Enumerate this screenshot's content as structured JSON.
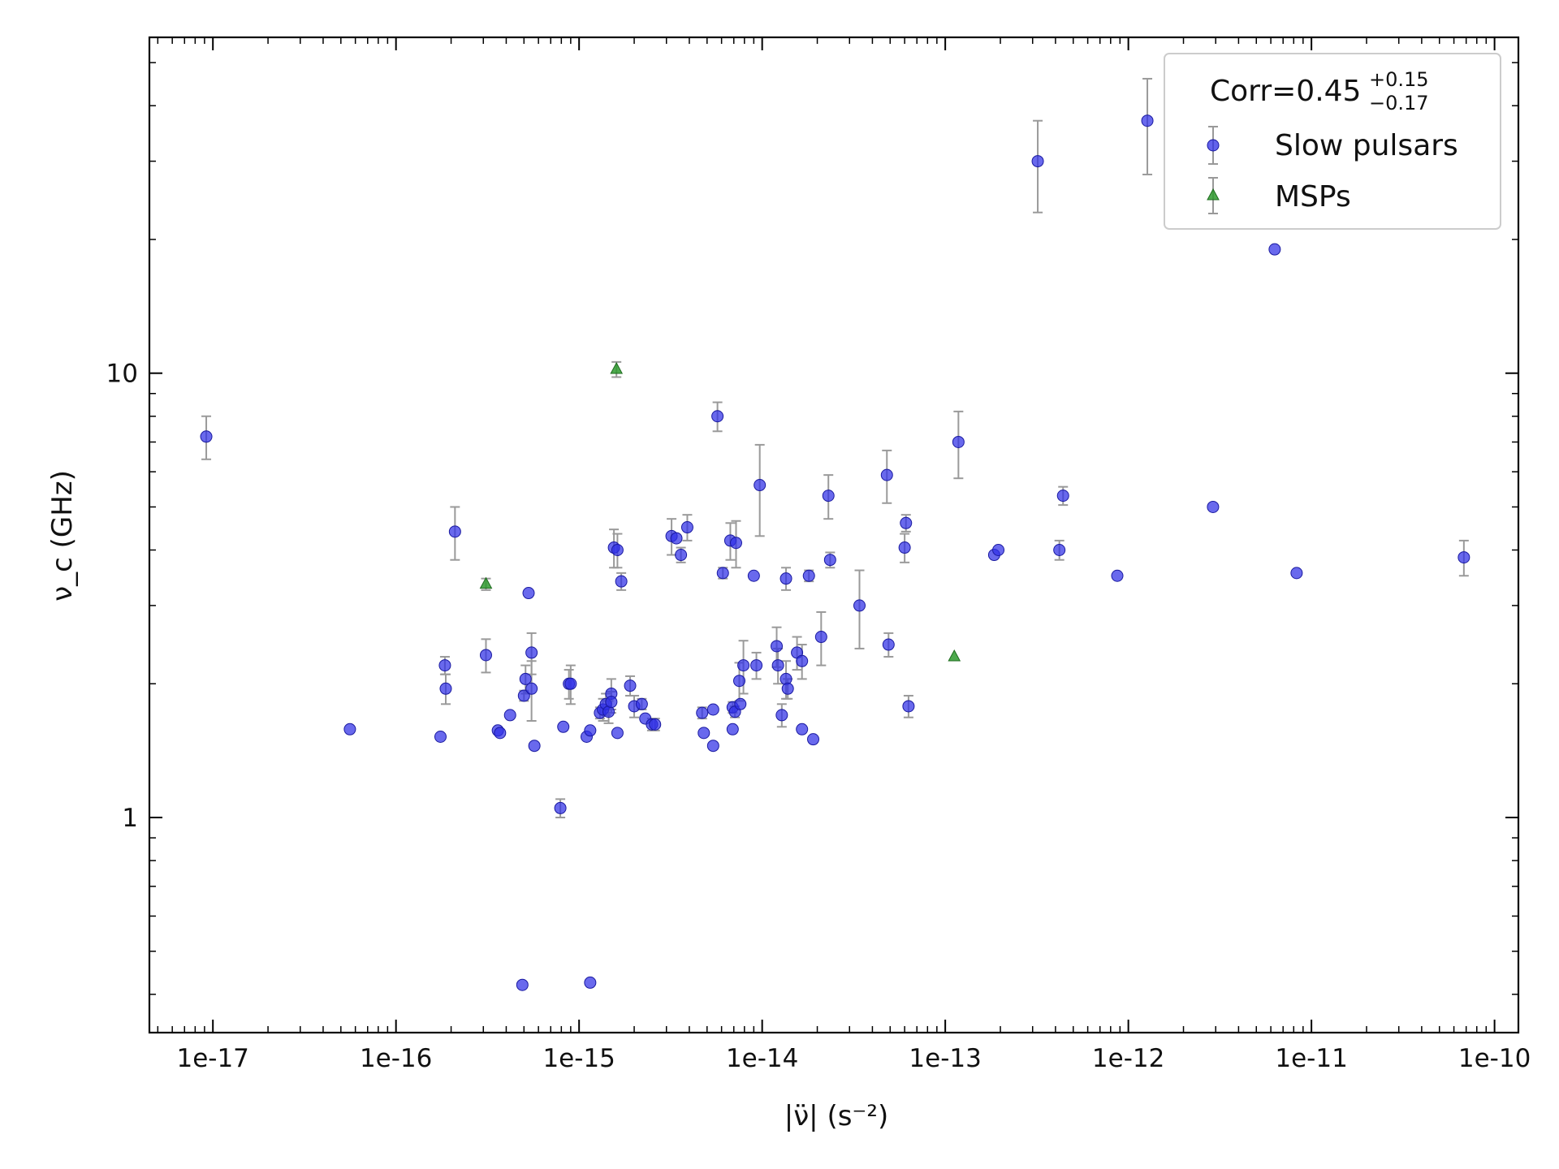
{
  "chart_data": {
    "type": "scatter",
    "title": "",
    "xlabel": "|ν̈| (s⁻²)",
    "ylabel": "ν_c (GHz)",
    "xscale": "log",
    "yscale": "log",
    "xlim": [
      4.5e-18,
      1.35e-10
    ],
    "ylim": [
      0.328,
      57
    ],
    "grid": false,
    "legend_position": "top-right",
    "xticks": [
      {
        "value": 1e-17,
        "label": "1e-17"
      },
      {
        "value": 1e-16,
        "label": "1e-16"
      },
      {
        "value": 1e-15,
        "label": "1e-15"
      },
      {
        "value": 1e-14,
        "label": "1e-14"
      },
      {
        "value": 1e-13,
        "label": "1e-13"
      },
      {
        "value": 1e-12,
        "label": "1e-12"
      },
      {
        "value": 1e-11,
        "label": "1e-11"
      },
      {
        "value": 1e-10,
        "label": "1e-10"
      }
    ],
    "yticks": [
      {
        "value": 1,
        "label": "1"
      },
      {
        "value": 10,
        "label": "10"
      }
    ],
    "annotation": {
      "base": "Corr=0.45",
      "sup": "+0.15",
      "sub": "−0.17"
    },
    "series": [
      {
        "name": "Slow pulsars",
        "marker": "circle",
        "color": "#2f2fe6",
        "points": [
          [
            9.2e-18,
            7.2,
            0.8
          ],
          [
            5.6e-17,
            1.58,
            0
          ],
          [
            1.75e-16,
            1.52,
            0
          ],
          [
            1.85e-16,
            2.2,
            0.1
          ],
          [
            1.87e-16,
            1.95,
            0.15
          ],
          [
            2.1e-16,
            4.4,
            0.6
          ],
          [
            3.1e-16,
            2.32,
            0.2
          ],
          [
            3.6e-16,
            1.57,
            0
          ],
          [
            3.7e-16,
            1.55,
            0
          ],
          [
            4.2e-16,
            1.7,
            0
          ],
          [
            5e-16,
            1.88,
            0.05
          ],
          [
            5.1e-16,
            2.05,
            0.15
          ],
          [
            5.3e-16,
            3.2,
            0
          ],
          [
            5.5e-16,
            2.35,
            0.25
          ],
          [
            5.5e-16,
            1.95,
            0.3
          ],
          [
            5.7e-16,
            1.45,
            0
          ],
          [
            7.9e-16,
            1.05,
            0.05
          ],
          [
            8.2e-16,
            1.6,
            0
          ],
          [
            8.8e-16,
            2.0,
            0.15
          ],
          [
            9e-16,
            2.0,
            0.2
          ],
          [
            1.1e-15,
            1.52,
            0
          ],
          [
            1.15e-15,
            1.57,
            0
          ],
          [
            1.3e-15,
            1.72,
            0.05
          ],
          [
            1.35e-15,
            1.75,
            0.1
          ],
          [
            1.4e-15,
            1.8,
            0.1
          ],
          [
            1.45e-15,
            1.73,
            0.1
          ],
          [
            1.5e-15,
            1.9,
            0.15
          ],
          [
            1.5e-15,
            1.82,
            0.1
          ],
          [
            1.55e-15,
            4.05,
            0.4
          ],
          [
            1.62e-15,
            4.0,
            0.35
          ],
          [
            1.62e-15,
            1.55,
            0
          ],
          [
            1.7e-15,
            3.4,
            0.15
          ],
          [
            1.9e-15,
            1.98,
            0.1
          ],
          [
            2e-15,
            1.78,
            0.1
          ],
          [
            2.2e-15,
            1.8,
            0.05
          ],
          [
            2.3e-15,
            1.67,
            0
          ],
          [
            2.5e-15,
            1.62,
            0.05
          ],
          [
            2.6e-15,
            1.62,
            0.05
          ],
          [
            3.2e-15,
            4.3,
            0.4
          ],
          [
            3.4e-15,
            4.25,
            0
          ],
          [
            3.6e-15,
            3.9,
            0.15
          ],
          [
            3.9e-15,
            4.5,
            0.3
          ],
          [
            4.7e-15,
            1.72,
            0.05
          ],
          [
            4.8e-15,
            1.55,
            0
          ],
          [
            5.4e-15,
            1.75,
            0
          ],
          [
            5.4e-15,
            1.45,
            0
          ],
          [
            5.7e-15,
            8.0,
            0.6
          ],
          [
            6.1e-15,
            3.55,
            0.1
          ],
          [
            6.7e-15,
            4.2,
            0.4
          ],
          [
            6.9e-15,
            1.77,
            0.05
          ],
          [
            6.9e-15,
            1.58,
            0
          ],
          [
            7.1e-15,
            1.73,
            0.05
          ],
          [
            7.2e-15,
            4.15,
            0.5
          ],
          [
            7.5e-15,
            2.03,
            0.2
          ],
          [
            7.6e-15,
            1.8,
            0
          ],
          [
            7.9e-15,
            2.2,
            0.3
          ],
          [
            9e-15,
            3.5,
            0
          ],
          [
            9.3e-15,
            2.2,
            0.15
          ],
          [
            9.7e-15,
            5.6,
            1.3
          ],
          [
            1.2e-14,
            2.43,
            0.25
          ],
          [
            1.22e-14,
            2.2,
            0.2
          ],
          [
            1.28e-14,
            1.7,
            0.1
          ],
          [
            1.35e-14,
            3.45,
            0.2
          ],
          [
            1.35e-14,
            2.05,
            0.2
          ],
          [
            1.38e-14,
            1.95,
            0.1
          ],
          [
            1.55e-14,
            2.35,
            0.2
          ],
          [
            1.65e-14,
            1.58,
            0
          ],
          [
            1.65e-14,
            2.25,
            0.2
          ],
          [
            1.8e-14,
            3.5,
            0.1
          ],
          [
            1.9e-14,
            1.5,
            0
          ],
          [
            2.1e-14,
            2.55,
            0.35
          ],
          [
            2.3e-14,
            5.3,
            0.6
          ],
          [
            2.35e-14,
            3.8,
            0.15
          ],
          [
            3.4e-14,
            3.0,
            0.6
          ],
          [
            4.8e-14,
            5.9,
            0.8
          ],
          [
            4.9e-14,
            2.45,
            0.15
          ],
          [
            6e-14,
            4.05,
            0.3
          ],
          [
            6.1e-14,
            4.6,
            0.2
          ],
          [
            6.3e-14,
            1.78,
            0.1
          ],
          [
            1.18e-13,
            7.0,
            1.2
          ],
          [
            1.85e-13,
            3.9,
            0
          ],
          [
            1.95e-13,
            4.0,
            0
          ],
          [
            3.2e-13,
            30.0,
            7.0
          ],
          [
            4.2e-13,
            4.0,
            0.2
          ],
          [
            4.4e-13,
            5.3,
            0.25
          ],
          [
            8.7e-13,
            3.5,
            0
          ],
          [
            1.27e-12,
            37.0,
            9.0
          ],
          [
            2.9e-12,
            5.0,
            0
          ],
          [
            6.3e-12,
            19.0,
            0
          ],
          [
            8.3e-12,
            3.55,
            0
          ],
          [
            6.8e-11,
            3.85,
            0.35
          ],
          [
            4.9e-16,
            0.42,
            0
          ],
          [
            1.15e-15,
            0.425,
            0
          ]
        ]
      },
      {
        "name": "MSPs",
        "marker": "triangle",
        "color": "#2e9a2e",
        "points": [
          [
            3.1e-16,
            3.35,
            0.1
          ],
          [
            1.6e-15,
            10.2,
            0.4
          ],
          [
            1.12e-13,
            2.3,
            0
          ]
        ]
      }
    ]
  }
}
